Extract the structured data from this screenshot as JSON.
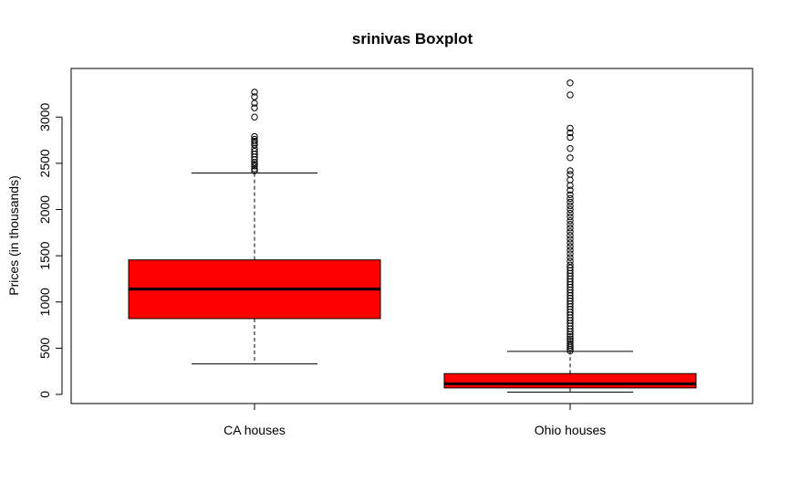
{
  "chart_data": {
    "type": "boxplot",
    "title": "srinivas Boxplot",
    "xlabel": "",
    "ylabel": "Prices (in thousands)",
    "ylim": [
      -85,
      3400
    ],
    "yticks": [
      0,
      500,
      1000,
      1500,
      2000,
      2500,
      3000
    ],
    "grid": false,
    "box_color": "#ff0000",
    "categories": [
      "CA houses",
      "Ohio houses"
    ],
    "boxes": [
      {
        "category": "CA houses",
        "whisker_low": 330,
        "q1": 820,
        "median": 1140,
        "q3": 1455,
        "whisker_high": 2395,
        "outliers": [
          2420,
          2440,
          2470,
          2490,
          2510,
          2540,
          2570,
          2600,
          2630,
          2660,
          2700,
          2720,
          2740,
          2760,
          2790,
          3000,
          3100,
          3150,
          3220,
          3270
        ]
      },
      {
        "category": "Ohio houses",
        "whisker_low": 25,
        "q1": 70,
        "median": 115,
        "q3": 225,
        "whisker_high": 465,
        "outliers": [
          470,
          490,
          510,
          530,
          550,
          575,
          600,
          625,
          650,
          680,
          710,
          740,
          770,
          800,
          830,
          860,
          890,
          920,
          950,
          980,
          1010,
          1040,
          1070,
          1100,
          1130,
          1160,
          1190,
          1220,
          1250,
          1280,
          1310,
          1340,
          1370,
          1400,
          1440,
          1480,
          1520,
          1560,
          1600,
          1640,
          1680,
          1720,
          1760,
          1800,
          1840,
          1880,
          1920,
          1960,
          2000,
          2040,
          2080,
          2120,
          2160,
          2210,
          2260,
          2320,
          2380,
          2420,
          2560,
          2660,
          2780,
          2830,
          2880,
          3240,
          3370
        ]
      }
    ]
  }
}
